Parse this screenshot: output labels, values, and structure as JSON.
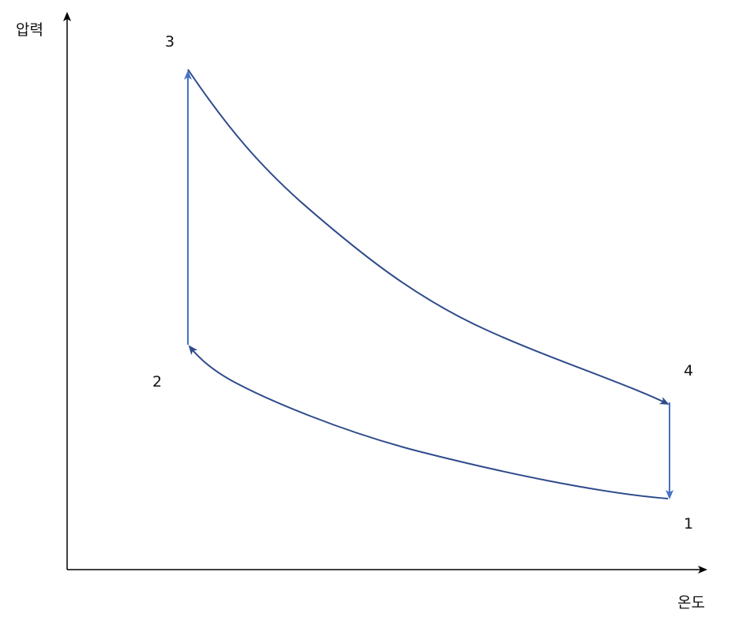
{
  "axes": {
    "y_label": "압력",
    "x_label": "온도"
  },
  "points": {
    "p1": "1",
    "p2": "2",
    "p3": "3",
    "p4": "4"
  },
  "colors": {
    "curve": "#2f4b8c",
    "vertical": "#4472c4",
    "axis": "#000000"
  }
}
